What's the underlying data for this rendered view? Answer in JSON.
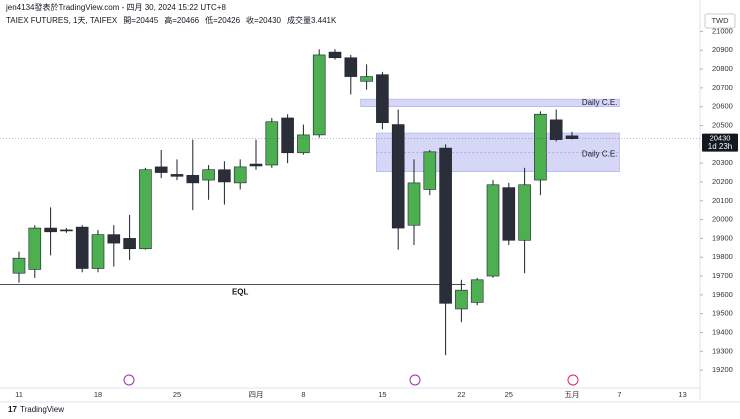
{
  "header": {
    "author": "jen4134發表於TradingView.com - 四月 30, 2024 15:22 UTC+8",
    "currency": "TWD",
    "brand": "TradingView"
  },
  "chart_data": {
    "type": "candlestick",
    "title": "TAIEX FUTURES, 1天, TAIFEX",
    "ohlc_labels": [
      "開=",
      "高=",
      "低=",
      "收="
    ],
    "volume": "成交量3.441K",
    "categories": [
      "11",
      null,
      null,
      null,
      null,
      "18",
      null,
      null,
      null,
      null,
      "25",
      null,
      null,
      null,
      null,
      "四月",
      null,
      null,
      "8",
      null,
      null,
      null,
      null,
      "15",
      null,
      null,
      null,
      null,
      "22",
      null,
      null,
      "25",
      null,
      null,
      null,
      "五月",
      null,
      null,
      "7",
      null,
      null,
      null,
      "13"
    ],
    "open": [
      19715,
      19735,
      19955,
      19945,
      19960,
      19740,
      19920,
      19900,
      19845,
      20280,
      20240,
      20235,
      20210,
      20265,
      20195,
      20295,
      20290,
      20540,
      20355,
      20450,
      20890,
      20860,
      20735,
      20770,
      20505,
      19970,
      20160,
      20380,
      19525,
      19560,
      19700,
      20170,
      19890,
      20210,
      20530,
      20445,
      null,
      null,
      null,
      null,
      null,
      null,
      null
    ],
    "high": [
      19830,
      19970,
      20065,
      19955,
      19970,
      19945,
      19970,
      20025,
      20275,
      20370,
      20320,
      20425,
      20290,
      20310,
      20320,
      20425,
      20540,
      20560,
      20505,
      20905,
      20905,
      20875,
      20825,
      20785,
      20585,
      20320,
      20370,
      20400,
      19680,
      19690,
      20210,
      20195,
      20275,
      20575,
      20585,
      20466,
      null,
      null,
      null,
      null,
      null,
      null,
      null
    ],
    "low": [
      19665,
      19690,
      19810,
      19930,
      19720,
      19720,
      19750,
      19785,
      19840,
      20220,
      20210,
      20050,
      20105,
      20080,
      20160,
      20265,
      20275,
      20300,
      20345,
      20435,
      20850,
      20665,
      20690,
      20480,
      19840,
      19865,
      20130,
      19280,
      19455,
      19545,
      19690,
      19865,
      19715,
      20130,
      20415,
      20426,
      null,
      null,
      null,
      null,
      null,
      null,
      null
    ],
    "close": [
      19795,
      19955,
      19935,
      19940,
      19740,
      19920,
      19875,
      19845,
      20265,
      20250,
      20230,
      20195,
      20265,
      20200,
      20280,
      20285,
      20520,
      20355,
      20450,
      20875,
      20860,
      20760,
      20760,
      20515,
      19955,
      20195,
      20360,
      19555,
      19625,
      19680,
      20185,
      19890,
      20185,
      20560,
      20425,
      20430,
      null,
      null,
      null,
      null,
      null,
      null,
      null
    ],
    "up_color": "#4caf50",
    "down_color": "#2a2e39",
    "countdown": "1d 23h",
    "ylim": [
      19105,
      21050
    ],
    "yticks": [
      19200,
      19300,
      19400,
      19500,
      19600,
      19700,
      19800,
      19900,
      20000,
      20100,
      20200,
      20300,
      20500,
      20600,
      20700,
      20800,
      20900,
      21000
    ],
    "grid": false,
    "zones": [
      {
        "label": "Daily C.E.",
        "top": 20640,
        "bottom": 20600,
        "from": 22,
        "to": 38
      },
      {
        "label": "Daily C.E.",
        "top": 20460,
        "bottom": 20255,
        "from": 23,
        "to": 38
      }
    ],
    "level": {
      "label": "EQL",
      "value": 19655,
      "from": 0,
      "to": 28
    }
  }
}
